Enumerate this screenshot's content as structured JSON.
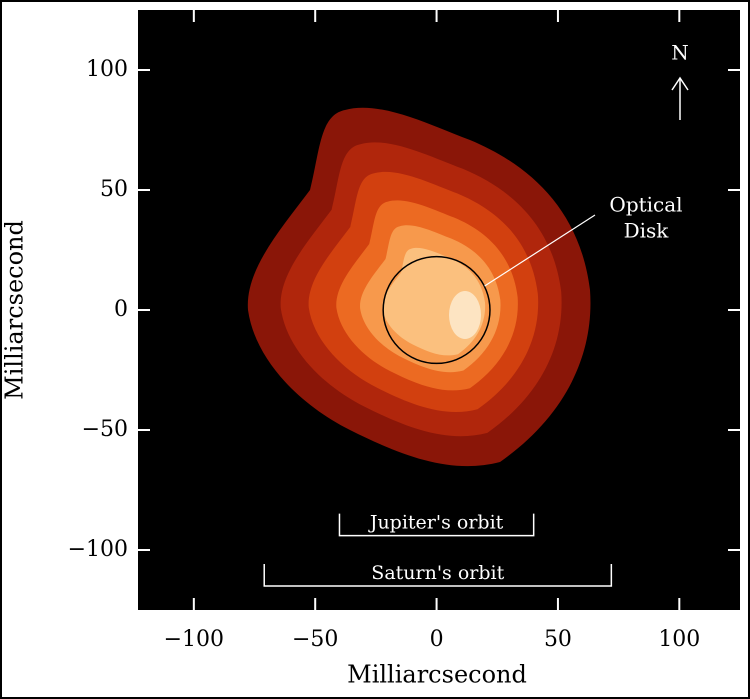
{
  "chart_data": {
    "type": "contour",
    "x_label": "Milliarcsecond",
    "y_label": "Milliarcsecond",
    "xlim": [
      -123,
      125
    ],
    "ylim": [
      -125,
      125
    ],
    "xticks": [
      {
        "value": -100,
        "label": "−100"
      },
      {
        "value": -50,
        "label": "−50"
      },
      0,
      50,
      100
    ],
    "yticks": [
      {
        "value": -100,
        "label": "−100"
      },
      {
        "value": -50,
        "label": "−50"
      },
      0,
      50,
      100
    ],
    "optical_disk": {
      "label_lines": [
        "Optical",
        "Disk"
      ],
      "x": 0,
      "y": 0,
      "radius": 22
    },
    "orbits": [
      {
        "label": "Jupiter's orbit",
        "x": [
          -40,
          40
        ],
        "y": -94
      },
      {
        "label": "Saturn's orbit",
        "x": [
          -71,
          72
        ],
        "y": -115
      }
    ],
    "north_label": "N"
  }
}
